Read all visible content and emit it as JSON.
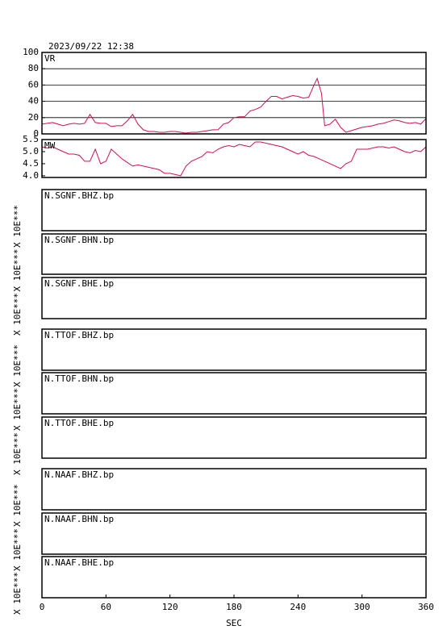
{
  "chart_data": [
    {
      "type": "line",
      "title": "2023/09/22 12:38",
      "label": "VR",
      "xlim": [
        0,
        360
      ],
      "ylim": [
        0,
        100
      ],
      "yticks": [
        0,
        20,
        40,
        60,
        80,
        100
      ],
      "grid": true,
      "x": [
        0,
        5,
        10,
        15,
        20,
        25,
        30,
        35,
        40,
        45,
        50,
        55,
        60,
        65,
        70,
        75,
        80,
        85,
        90,
        95,
        100,
        105,
        110,
        115,
        120,
        125,
        130,
        135,
        140,
        145,
        150,
        155,
        160,
        165,
        170,
        175,
        180,
        185,
        190,
        195,
        200,
        205,
        210,
        215,
        220,
        225,
        230,
        235,
        240,
        245,
        250,
        255,
        258,
        262,
        265,
        270,
        275,
        280,
        285,
        290,
        295,
        300,
        305,
        310,
        315,
        320,
        325,
        330,
        335,
        340,
        345,
        350,
        355,
        360
      ],
      "series": [
        {
          "color": "#d0104c",
          "values": [
            12,
            13,
            14,
            12,
            10,
            12,
            13,
            12,
            13,
            24,
            14,
            13,
            13,
            9,
            10,
            10,
            16,
            24,
            12,
            5,
            3,
            3,
            2,
            2,
            3,
            3,
            2,
            1,
            2,
            2,
            3,
            4,
            5,
            5,
            12,
            14,
            20,
            21,
            21,
            28,
            30,
            33,
            40,
            46,
            46,
            43,
            45,
            47,
            46,
            44,
            45,
            60,
            68,
            50,
            10,
            12,
            18,
            8,
            2,
            4,
            6,
            8,
            9,
            10,
            12,
            13,
            15,
            17,
            16,
            14,
            13,
            14,
            12,
            19
          ]
        }
      ]
    },
    {
      "type": "line",
      "label": "MW",
      "xlim": [
        0,
        360
      ],
      "ylim": [
        3.93,
        5.5
      ],
      "yticks": [
        {
          "value": 4,
          "label": "4.0"
        },
        4.5,
        {
          "value": 5,
          "label": "5.0"
        },
        5.5
      ],
      "grid": false,
      "x": [
        0,
        5,
        10,
        15,
        20,
        25,
        30,
        35,
        40,
        45,
        50,
        55,
        60,
        65,
        70,
        75,
        80,
        85,
        90,
        95,
        100,
        105,
        110,
        115,
        120,
        125,
        130,
        135,
        140,
        145,
        150,
        155,
        160,
        165,
        170,
        175,
        180,
        185,
        190,
        195,
        200,
        205,
        210,
        215,
        220,
        225,
        230,
        235,
        240,
        245,
        250,
        255,
        260,
        265,
        270,
        275,
        280,
        285,
        290,
        295,
        300,
        305,
        310,
        315,
        320,
        325,
        330,
        335,
        340,
        345,
        350,
        355,
        360
      ],
      "series": [
        {
          "color": "#d0104c",
          "values": [
            5.2,
            5.15,
            5.2,
            5.1,
            5.0,
            4.9,
            4.9,
            4.85,
            4.6,
            4.6,
            5.1,
            4.5,
            4.6,
            5.1,
            4.9,
            4.7,
            4.55,
            4.4,
            4.45,
            4.4,
            4.35,
            4.3,
            4.25,
            4.1,
            4.1,
            4.05,
            4.0,
            4.4,
            4.6,
            4.7,
            4.8,
            5.0,
            4.95,
            5.1,
            5.2,
            5.25,
            5.2,
            5.3,
            5.25,
            5.2,
            5.4,
            5.4,
            5.35,
            5.3,
            5.25,
            5.2,
            5.1,
            5.0,
            4.9,
            5.0,
            4.85,
            4.8,
            4.7,
            4.6,
            4.5,
            4.4,
            4.3,
            4.5,
            4.6,
            5.1,
            5.1,
            5.1,
            5.15,
            5.2,
            5.2,
            5.15,
            5.2,
            5.1,
            5.0,
            4.95,
            5.05,
            5.0,
            5.2
          ]
        }
      ]
    },
    {
      "type": "line",
      "label": "N.SGNF.BHZ.bp",
      "ylabel": "X 10E***"
    },
    {
      "type": "line",
      "label": "N.SGNF.BHN.bp",
      "ylabel": "X 10E***"
    },
    {
      "type": "line",
      "label": "N.SGNF.BHE.bp",
      "ylabel": "X 10E***"
    },
    {
      "type": "line",
      "label": "N.TTOF.BHZ.bp",
      "ylabel": "X 10E***"
    },
    {
      "type": "line",
      "label": "N.TTOF.BHN.bp",
      "ylabel": "X 10E***"
    },
    {
      "type": "line",
      "label": "N.TTOF.BHE.bp",
      "ylabel": "X 10E***"
    },
    {
      "type": "line",
      "label": "N.NAAF.BHZ.bp",
      "ylabel": "X 10E***"
    },
    {
      "type": "line",
      "label": "N.NAAF.BHN.bp",
      "ylabel": "X 10E***"
    },
    {
      "type": "line",
      "label": "N.NAAF.BHE.bp",
      "ylabel": "X 10E***",
      "xlim": [
        0,
        360
      ],
      "xticks": [
        0,
        60,
        120,
        180,
        240,
        300,
        360
      ],
      "xlabel": "SEC"
    }
  ]
}
